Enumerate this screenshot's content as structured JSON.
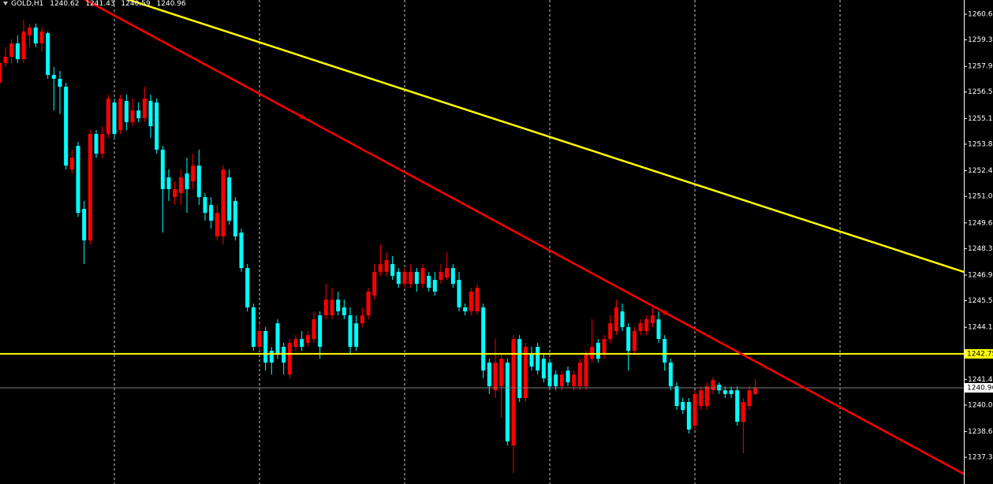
{
  "chart_data": {
    "type": "candlestick",
    "title": "GOLD,H1",
    "open": [
      1257.04,
      1258.08,
      1258.41,
      1259.11,
      1258.28,
      1259.53,
      1259.95,
      1259.11,
      1259.65,
      1257.45,
      1257.25,
      1256.83,
      1252.47,
      1253.71,
      1250.39,
      1248.73,
      1254.34,
      1253.3,
      1254.34,
      1256.0,
      1254.54,
      1256.08,
      1254.96,
      1255.58,
      1255.17,
      1256.08,
      1256.0,
      1253.51,
      1252.05,
      1251.01,
      1251.22,
      1252.26,
      1251.84,
      1252.67,
      1251.01,
      1250.6,
      1248.94,
      1248.94,
      1252.05,
      1250.81,
      1249.14,
      1247.27,
      1245.2,
      1243.12,
      1243.95,
      1242.91,
      1244.36,
      1243.12,
      1241.66,
      1243.12,
      1243.53,
      1243.33,
      1243.53,
      1244.78,
      1244.78,
      1244.78,
      1245.61,
      1245.2,
      1244.78,
      1244.36,
      1244.36,
      1244.78,
      1245.82,
      1247.07,
      1247.07,
      1247.48,
      1247.07,
      1246.44,
      1246.44,
      1247.07,
      1246.44,
      1246.86,
      1246.65,
      1246.65,
      1246.77,
      1247.27,
      1246.65,
      1245.2,
      1244.99,
      1244.99,
      1245.2,
      1242.29,
      1240.83,
      1241.04,
      1242.29,
      1237.92,
      1243.53,
      1240.42,
      1242.7,
      1243.12,
      1242.49,
      1242.29,
      1241.66,
      1241.04,
      1241.87,
      1241.04,
      1241.04,
      1241.04,
      1242.49,
      1243.33,
      1242.7,
      1243.53,
      1243.95,
      1244.99,
      1244.16,
      1242.91,
      1243.95,
      1243.95,
      1244.36,
      1244.57,
      1243.53,
      1242.29,
      1241.04,
      1240.21,
      1240.21,
      1238.96,
      1240.0,
      1240.0,
      1240.83,
      1241.12,
      1240.83,
      1240.83,
      1240.83,
      1239.17,
      1240.0,
      1240.62
    ],
    "high": [
      1258.49,
      1258.91,
      1259.32,
      1259.53,
      1260.36,
      1260.15,
      1260.15,
      1259.95,
      1259.74,
      1257.87,
      1257.66,
      1257.04,
      1253.51,
      1253.92,
      1250.81,
      1254.54,
      1254.54,
      1254.75,
      1256.41,
      1256.21,
      1256.41,
      1256.41,
      1256.21,
      1256.0,
      1256.83,
      1256.41,
      1256.21,
      1253.71,
      1252.47,
      1251.84,
      1252.47,
      1253.09,
      1253.3,
      1253.51,
      1251.22,
      1251.01,
      1250.6,
      1252.67,
      1252.47,
      1251.01,
      1249.35,
      1247.48,
      1245.4,
      1244.36,
      1244.16,
      1243.12,
      1244.57,
      1243.33,
      1243.53,
      1243.74,
      1243.95,
      1243.95,
      1244.99,
      1244.99,
      1246.44,
      1246.23,
      1246.03,
      1245.61,
      1245.2,
      1244.78,
      1245.2,
      1246.23,
      1247.48,
      1248.52,
      1248.1,
      1247.9,
      1247.27,
      1247.27,
      1247.48,
      1247.27,
      1247.48,
      1247.07,
      1247.07,
      1247.48,
      1248.1,
      1247.48,
      1247.07,
      1245.4,
      1246.23,
      1246.44,
      1245.4,
      1242.49,
      1243.53,
      1242.7,
      1242.49,
      1243.74,
      1243.74,
      1243.33,
      1243.12,
      1243.33,
      1242.7,
      1242.49,
      1241.87,
      1241.87,
      1242.08,
      1241.87,
      1242.49,
      1242.91,
      1244.57,
      1243.53,
      1243.74,
      1244.78,
      1245.61,
      1245.4,
      1244.36,
      1244.16,
      1244.57,
      1244.78,
      1245.2,
      1244.99,
      1243.74,
      1242.49,
      1241.25,
      1240.42,
      1240.42,
      1240.83,
      1241.04,
      1241.25,
      1241.54,
      1241.25,
      1241.04,
      1241.04,
      1241.04,
      1240.42,
      1241.04,
      1241.43
    ],
    "low": [
      1256.83,
      1257.87,
      1258.08,
      1258.08,
      1258.08,
      1258.91,
      1258.91,
      1258.7,
      1257.25,
      1255.58,
      1255.38,
      1252.47,
      1252.26,
      1249.97,
      1247.48,
      1248.52,
      1253.09,
      1253.09,
      1254.13,
      1254.13,
      1254.34,
      1254.54,
      1254.75,
      1254.96,
      1254.96,
      1254.13,
      1253.3,
      1249.14,
      1250.81,
      1250.6,
      1250.6,
      1250.18,
      1251.43,
      1250.6,
      1249.77,
      1249.35,
      1248.73,
      1248.52,
      1249.56,
      1248.73,
      1247.07,
      1244.99,
      1242.91,
      1242.91,
      1241.87,
      1241.66,
      1242.49,
      1241.66,
      1241.46,
      1242.91,
      1242.91,
      1243.12,
      1243.33,
      1242.49,
      1244.57,
      1244.57,
      1244.78,
      1244.57,
      1242.7,
      1242.91,
      1244.16,
      1244.57,
      1245.61,
      1246.86,
      1246.86,
      1246.65,
      1246.23,
      1246.23,
      1246.23,
      1246.03,
      1246.23,
      1246.03,
      1245.82,
      1246.44,
      1246.65,
      1246.23,
      1244.99,
      1244.78,
      1244.78,
      1244.78,
      1241.46,
      1240.63,
      1240.42,
      1239.38,
      1237.92,
      1236.47,
      1240.21,
      1240.21,
      1241.87,
      1241.66,
      1241.25,
      1240.83,
      1240.83,
      1240.83,
      1241.04,
      1240.83,
      1240.83,
      1240.83,
      1242.29,
      1242.29,
      1242.49,
      1243.33,
      1243.74,
      1243.95,
      1241.87,
      1242.7,
      1243.74,
      1243.74,
      1244.16,
      1243.33,
      1241.87,
      1240.83,
      1239.79,
      1239.59,
      1238.55,
      1238.76,
      1239.79,
      1239.79,
      1240.63,
      1240.63,
      1240.42,
      1240.42,
      1238.96,
      1237.51,
      1239.79,
      1240.59
    ],
    "close": [
      1258.08,
      1258.41,
      1259.11,
      1258.28,
      1259.74,
      1259.95,
      1259.11,
      1259.74,
      1257.45,
      1257.25,
      1256.83,
      1252.67,
      1253.09,
      1250.18,
      1248.73,
      1254.34,
      1253.3,
      1254.34,
      1256.21,
      1254.34,
      1256.21,
      1254.96,
      1255.58,
      1255.17,
      1256.21,
      1254.75,
      1253.51,
      1251.43,
      1251.43,
      1251.43,
      1252.05,
      1251.43,
      1252.67,
      1251.01,
      1250.18,
      1249.77,
      1250.18,
      1252.47,
      1249.77,
      1248.94,
      1247.27,
      1245.2,
      1243.12,
      1243.95,
      1242.29,
      1242.29,
      1242.7,
      1242.29,
      1243.33,
      1243.53,
      1243.12,
      1243.74,
      1244.57,
      1243.12,
      1245.61,
      1245.61,
      1244.99,
      1244.78,
      1243.12,
      1243.12,
      1244.78,
      1246.03,
      1247.07,
      1247.48,
      1247.69,
      1246.86,
      1246.44,
      1247.07,
      1247.07,
      1246.44,
      1247.27,
      1246.23,
      1246.03,
      1247.07,
      1247.27,
      1246.44,
      1245.2,
      1244.99,
      1246.03,
      1246.23,
      1241.87,
      1241.04,
      1242.29,
      1242.49,
      1238.13,
      1243.53,
      1240.42,
      1243.12,
      1242.08,
      1241.87,
      1241.46,
      1241.04,
      1241.04,
      1241.66,
      1241.25,
      1241.66,
      1242.29,
      1242.7,
      1243.12,
      1242.49,
      1243.53,
      1244.36,
      1245.2,
      1244.16,
      1242.91,
      1243.95,
      1244.36,
      1244.57,
      1244.78,
      1243.53,
      1242.29,
      1241.04,
      1240.0,
      1239.79,
      1238.76,
      1240.63,
      1240.83,
      1241.04,
      1241.37,
      1240.83,
      1240.63,
      1240.63,
      1239.17,
      1240.21,
      1240.83,
      1240.96
    ],
    "up_color": "#ff0000",
    "down_color": "#00ffff",
    "price_line_color": "#808080",
    "xlim": [
      0.09,
      159.47
    ],
    "xticks": [
      19,
      43,
      67,
      91,
      115,
      139
    ],
    "ylim": [
      1235.89,
      1261.4
    ],
    "yticks": [
      1260.65,
      {
        "value": 1259.3,
        "label": "1259.30"
      },
      {
        "value": 1257.9,
        "label": "1257.90"
      },
      1256.55,
      1255.15,
      {
        "value": 1253.8,
        "label": "1253.80"
      },
      {
        "value": 1252.4,
        "label": "1252.40"
      },
      1251.05,
      1249.65,
      {
        "value": 1248.3,
        "label": "1248.30"
      },
      {
        "value": 1246.9,
        "label": "1246.90"
      },
      1245.55,
      1244.15,
      1242.75,
      {
        "value": 1241.4,
        "label": "1241.40"
      },
      1240.05,
      1238.65,
      {
        "value": 1237.3,
        "label": "1237.30"
      }
    ],
    "hlines": [
      {
        "value": 1242.75,
        "color": "#ffff00"
      }
    ],
    "trendlines": [
      {
        "color": "#ff0000",
        "markers": true,
        "points": [
          [
            50,
            1255.25
          ],
          [
            110,
            1244.93
          ]
        ]
      },
      {
        "color": "#ffff00",
        "markers": false,
        "points": [
          [
            30,
            1260.52
          ],
          [
            120,
            1251.17
          ]
        ]
      }
    ]
  }
}
